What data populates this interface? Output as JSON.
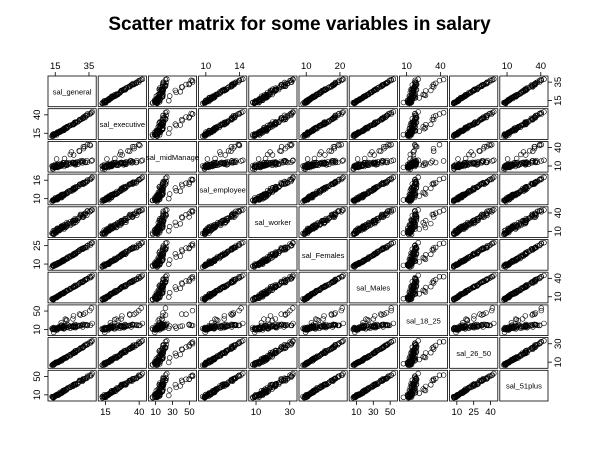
{
  "chart_data": {
    "type": "scatter",
    "title": "Scatter matrix for some variables in salary",
    "variables": [
      {
        "name": "sal_general",
        "ticks": [
          15,
          35
        ],
        "tick_side": "top"
      },
      {
        "name": "sal_executive",
        "ticks": [
          15,
          40
        ],
        "tick_side": "left"
      },
      {
        "name": "sal_midManage",
        "ticks": [
          10,
          30,
          50
        ],
        "tick_side": "bottom"
      },
      {
        "name": "sal_employee",
        "ticks": [
          10,
          14
        ],
        "tick_side": "top"
      },
      {
        "name": "sal_worker",
        "ticks": [
          10,
          30
        ],
        "tick_side": "bottom"
      },
      {
        "name": "sal_Females",
        "ticks": [
          10,
          20
        ],
        "tick_side": "top"
      },
      {
        "name": "sal_Males",
        "ticks": [
          10,
          30,
          50
        ],
        "tick_side": "bottom"
      },
      {
        "name": "sal_18_25",
        "ticks": [
          10,
          40
        ],
        "tick_side": "top"
      },
      {
        "name": "sal_26_50",
        "ticks": [
          10,
          25,
          40
        ],
        "tick_side": "bottom"
      },
      {
        "name": "sal_51plus",
        "ticks": [
          10,
          40
        ],
        "tick_side": "top"
      }
    ],
    "left_axis": [
      {
        "variable": "sal_executive",
        "ticks": [
          15,
          40
        ]
      },
      {
        "variable": "sal_employee",
        "ticks": [
          10,
          16
        ]
      },
      {
        "variable": "sal_Females",
        "ticks": [
          10,
          25
        ]
      },
      {
        "variable": "sal_18_25",
        "ticks": [
          10,
          50
        ]
      },
      {
        "variable": "sal_51plus",
        "ticks": [
          10,
          50
        ]
      }
    ],
    "right_axis": [
      {
        "variable": "sal_general",
        "ticks": [
          15,
          35
        ]
      },
      {
        "variable": "sal_midManage",
        "ticks": [
          10,
          40
        ]
      },
      {
        "variable": "sal_worker",
        "ticks": [
          10,
          40
        ]
      },
      {
        "variable": "sal_Males",
        "ticks": [
          10,
          40
        ]
      },
      {
        "variable": "sal_26_50",
        "ticks": [
          10,
          30
        ]
      }
    ],
    "marker": "open-circle",
    "marker_color": "#000000",
    "grid": false,
    "legend": "none",
    "approx_observations_per_panel": 90
  }
}
